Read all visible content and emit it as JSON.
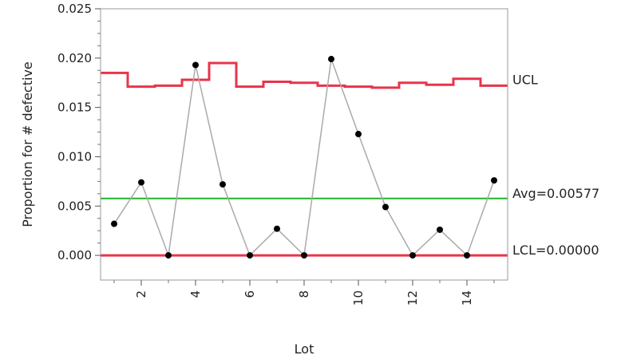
{
  "chart_data": {
    "type": "line",
    "title": "",
    "xlabel": "Lot",
    "ylabel": "Proportion for # defective",
    "xlim": [
      0.5,
      15.5
    ],
    "ylim": [
      -0.0025,
      0.025
    ],
    "x_ticks": [
      2,
      4,
      6,
      8,
      10,
      12,
      14
    ],
    "y_ticks": [
      0.0,
      0.005,
      0.01,
      0.015,
      0.02,
      0.025
    ],
    "y_tick_labels": [
      "0.000",
      "0.005",
      "0.010",
      "0.015",
      "0.020",
      "0.025"
    ],
    "grid": false,
    "legend": "none",
    "series": [
      {
        "x": [
          1,
          2,
          3,
          4,
          5,
          6,
          7,
          8,
          9,
          10,
          11,
          12,
          13,
          14,
          15
        ],
        "values": [
          0.0032,
          0.0074,
          0.0,
          0.0193,
          0.0072,
          0.0,
          0.0027,
          0.0,
          0.0199,
          0.0123,
          0.0049,
          0.0,
          0.0026,
          0.0,
          0.0076
        ],
        "color": "#000000",
        "line_color": "#aaaaaa"
      }
    ],
    "ucl": {
      "label": "UCL",
      "values": [
        0.0185,
        0.0171,
        0.0172,
        0.0178,
        0.0195,
        0.0171,
        0.0176,
        0.0175,
        0.0172,
        0.0171,
        0.017,
        0.0175,
        0.0173,
        0.0179,
        0.0172
      ],
      "color": "#e8344a"
    },
    "center": {
      "label": "Avg=0.00577",
      "value": 0.00577,
      "color": "#22b22a"
    },
    "lcl": {
      "label": "LCL=0.00000",
      "value": 0.0,
      "color": "#e8344a"
    }
  }
}
